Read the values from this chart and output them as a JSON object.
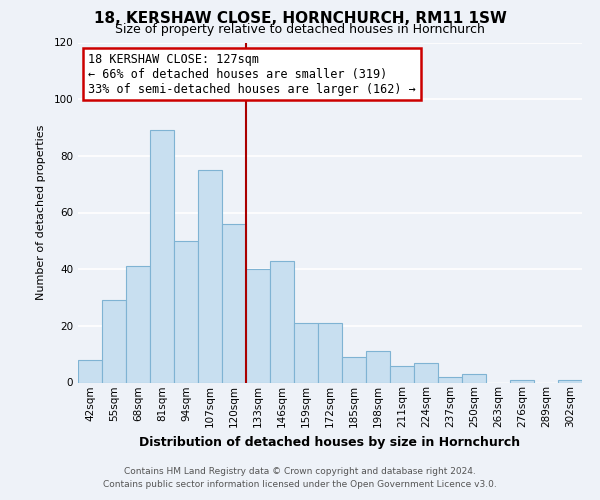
{
  "title": "18, KERSHAW CLOSE, HORNCHURCH, RM11 1SW",
  "subtitle": "Size of property relative to detached houses in Hornchurch",
  "xlabel": "Distribution of detached houses by size in Hornchurch",
  "ylabel": "Number of detached properties",
  "bin_labels": [
    "42sqm",
    "55sqm",
    "68sqm",
    "81sqm",
    "94sqm",
    "107sqm",
    "120sqm",
    "133sqm",
    "146sqm",
    "159sqm",
    "172sqm",
    "185sqm",
    "198sqm",
    "211sqm",
    "224sqm",
    "237sqm",
    "250sqm",
    "263sqm",
    "276sqm",
    "289sqm",
    "302sqm"
  ],
  "bar_heights": [
    8,
    29,
    41,
    89,
    50,
    75,
    56,
    40,
    43,
    21,
    21,
    9,
    11,
    6,
    7,
    2,
    3,
    0,
    1,
    0,
    1
  ],
  "bar_color": "#c8dff0",
  "bar_edge_color": "#7fb3d3",
  "property_label": "18 KERSHAW CLOSE: 127sqm",
  "annotation_line1": "← 66% of detached houses are smaller (319)",
  "annotation_line2": "33% of semi-detached houses are larger (162) →",
  "annotation_box_facecolor": "#ffffff",
  "annotation_box_edgecolor": "#cc0000",
  "vline_color": "#aa0000",
  "vline_x": 7,
  "ylim": [
    0,
    120
  ],
  "yticks": [
    0,
    20,
    40,
    60,
    80,
    100,
    120
  ],
  "footer_line1": "Contains HM Land Registry data © Crown copyright and database right 2024.",
  "footer_line2": "Contains public sector information licensed under the Open Government Licence v3.0.",
  "bg_color": "#eef2f8",
  "grid_color": "#ffffff",
  "title_fontsize": 11,
  "subtitle_fontsize": 9,
  "xlabel_fontsize": 9,
  "ylabel_fontsize": 8,
  "tick_fontsize": 7.5,
  "annot_fontsize": 8.5,
  "footer_fontsize": 6.5
}
